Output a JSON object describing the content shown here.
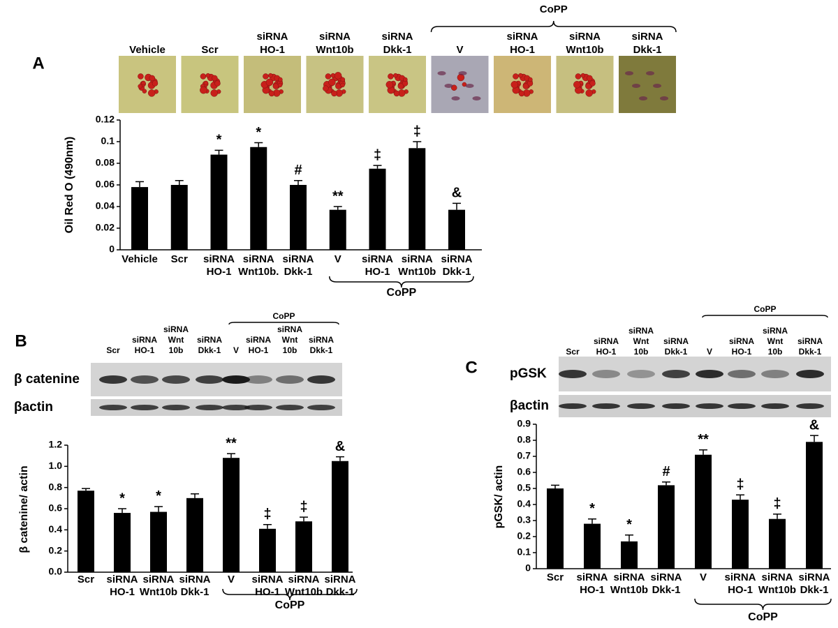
{
  "chart_data": [
    {
      "type": "bar",
      "panel": "A",
      "image_labels": [
        [
          "Vehicle"
        ],
        [
          "Scr"
        ],
        [
          "siRNA",
          "HO-1"
        ],
        [
          "siRNA",
          "Wnt10b"
        ],
        [
          "siRNA",
          "Dkk-1"
        ],
        [
          "V"
        ],
        [
          "siRNA",
          "HO-1"
        ],
        [
          "siRNA",
          "Wnt10b"
        ],
        [
          "siRNA",
          "Dkk-1"
        ]
      ],
      "image_group_label": "CoPP",
      "y_label": "Oil Red O (490nm)",
      "categories": [
        [
          "Vehicle"
        ],
        [
          "Scr"
        ],
        [
          "siRNA",
          "HO-1"
        ],
        [
          "siRNA",
          "Wnt10b."
        ],
        [
          "siRNA",
          "Dkk-1"
        ],
        [
          "V"
        ],
        [
          "siRNA",
          "HO-1"
        ],
        [
          "siRNA",
          "Wnt10b"
        ],
        [
          "siRNA",
          "Dkk-1"
        ]
      ],
      "values": [
        0.058,
        0.06,
        0.088,
        0.095,
        0.06,
        0.037,
        0.075,
        0.094,
        0.037
      ],
      "errors": [
        0.005,
        0.004,
        0.004,
        0.004,
        0.004,
        0.003,
        0.003,
        0.006,
        0.006
      ],
      "annotations": [
        null,
        null,
        "*",
        "*",
        "#",
        "**",
        "‡",
        "‡",
        "&"
      ],
      "group_label": "CoPP",
      "color": "#000000",
      "ylim": [
        0,
        0.12
      ],
      "yticks": [
        0,
        0.02,
        0.04,
        0.06,
        0.08,
        0.1,
        0.12
      ]
    },
    {
      "type": "bar",
      "panel": "B",
      "blot_lanes": [
        [
          "Scr"
        ],
        [
          "siRNA",
          "HO-1"
        ],
        [
          "siRNA",
          "Wnt",
          "10b"
        ],
        [
          "siRNA",
          "Dkk-1"
        ],
        [
          "V"
        ],
        [
          "siRNA",
          "HO-1"
        ],
        [
          "siRNA",
          "Wnt",
          "10b"
        ],
        [
          "siRNA",
          "Dkk-1"
        ]
      ],
      "blot_group_label": "CoPP",
      "blot_rows": [
        "β catenine",
        "βactin"
      ],
      "y_label": "β catenine/ actin",
      "categories": [
        [
          "Scr"
        ],
        [
          "siRNA",
          "HO-1"
        ],
        [
          "siRNA",
          "Wnt10b"
        ],
        [
          "siRNA",
          "Dkk-1"
        ],
        [
          "V"
        ],
        [
          "siRNA",
          "HO-1"
        ],
        [
          "siRNA",
          "Wnt10b"
        ],
        [
          "siRNA",
          "Dkk-1"
        ]
      ],
      "values": [
        0.77,
        0.56,
        0.57,
        0.7,
        1.08,
        0.41,
        0.48,
        1.05
      ],
      "errors": [
        0.02,
        0.04,
        0.05,
        0.04,
        0.04,
        0.04,
        0.04,
        0.04
      ],
      "annotations": [
        null,
        "*",
        "*",
        null,
        "**",
        "‡",
        "‡",
        "&"
      ],
      "group_label": "CoPP",
      "color": "#000000",
      "ylim": [
        0,
        1.2
      ],
      "yticks": [
        {
          "value": 0,
          "label": "0.0"
        },
        0.2,
        0.4,
        0.6,
        0.8,
        {
          "value": 1,
          "label": "1.0"
        },
        1.2
      ]
    },
    {
      "type": "bar",
      "panel": "C",
      "blot_lanes": [
        [
          "Scr"
        ],
        [
          "siRNA",
          "HO-1"
        ],
        [
          "siRNA",
          "Wnt",
          "10b"
        ],
        [
          "siRNA",
          "Dkk-1"
        ],
        [
          "V"
        ],
        [
          "siRNA",
          "HO-1"
        ],
        [
          "siRNA",
          "Wnt",
          "10b"
        ],
        [
          "siRNA",
          "Dkk-1"
        ]
      ],
      "blot_group_label": "CoPP",
      "blot_rows": [
        "pGSK",
        "βactin"
      ],
      "y_label": "pGSK/ actin",
      "categories": [
        [
          "Scr"
        ],
        [
          "siRNA",
          "HO-1"
        ],
        [
          "siRNA",
          "Wnt10b"
        ],
        [
          "siRNA",
          "Dkk-1"
        ],
        [
          "V"
        ],
        [
          "siRNA",
          "HO-1"
        ],
        [
          "siRNA",
          "Wnt10b"
        ],
        [
          "siRNA",
          "Dkk-1"
        ]
      ],
      "values": [
        0.5,
        0.28,
        0.17,
        0.52,
        0.71,
        0.43,
        0.31,
        0.79
      ],
      "errors": [
        0.02,
        0.03,
        0.04,
        0.02,
        0.03,
        0.03,
        0.03,
        0.04
      ],
      "annotations": [
        null,
        "*",
        "*",
        "#",
        "**",
        "‡",
        "‡",
        "&"
      ],
      "group_label": "CoPP",
      "color": "#000000",
      "ylim": [
        0,
        0.9
      ],
      "yticks": [
        0,
        0.1,
        0.2,
        0.3,
        0.4,
        0.5,
        0.6,
        0.7,
        0.8,
        0.9
      ]
    }
  ]
}
